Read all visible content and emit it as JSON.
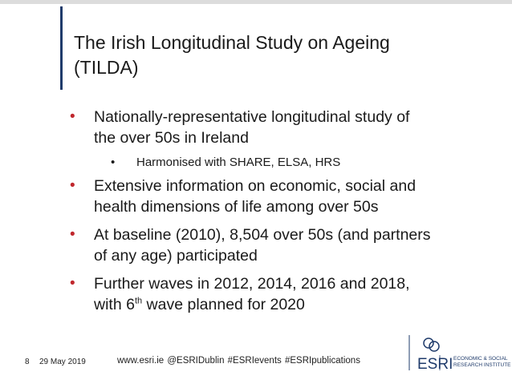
{
  "slide": {
    "title_lines": [
      "The Irish Longitudinal Study on Ageing",
      "(TILDA)"
    ]
  },
  "bullets": [
    {
      "lines": [
        "Nationally-representative longitudinal study of",
        "the over 50s in Ireland"
      ]
    },
    {
      "sub": "Harmonised with SHARE, ELSA, HRS"
    },
    {
      "lines": [
        "Extensive information on economic, social and",
        "health dimensions of life among over 50s"
      ]
    },
    {
      "lines": [
        "At baseline (2010), 8,504 over 50s (and partners",
        "of any age) participated"
      ]
    },
    {
      "lines": [
        "Further waves in 2012, 2014, 2016 and 2018,"
      ],
      "last_prefix": "with 6",
      "last_sup": "th",
      "last_suffix": " wave planned for 2020"
    }
  ],
  "bullet_glyph": "•",
  "footer": {
    "page": "8",
    "date": "29 May 2019",
    "links": "www.esri.ie   @ESRIDublin   #ESRIevents   #ESRIpublications"
  },
  "logo": {
    "wordmark": "ESRI",
    "text_lines": [
      "ECONOMIC & SOCIAL",
      "RESEARCH INSTITUTE"
    ]
  },
  "colors": {
    "accent": "#1f3b6b",
    "bullet": "#c0272d"
  }
}
